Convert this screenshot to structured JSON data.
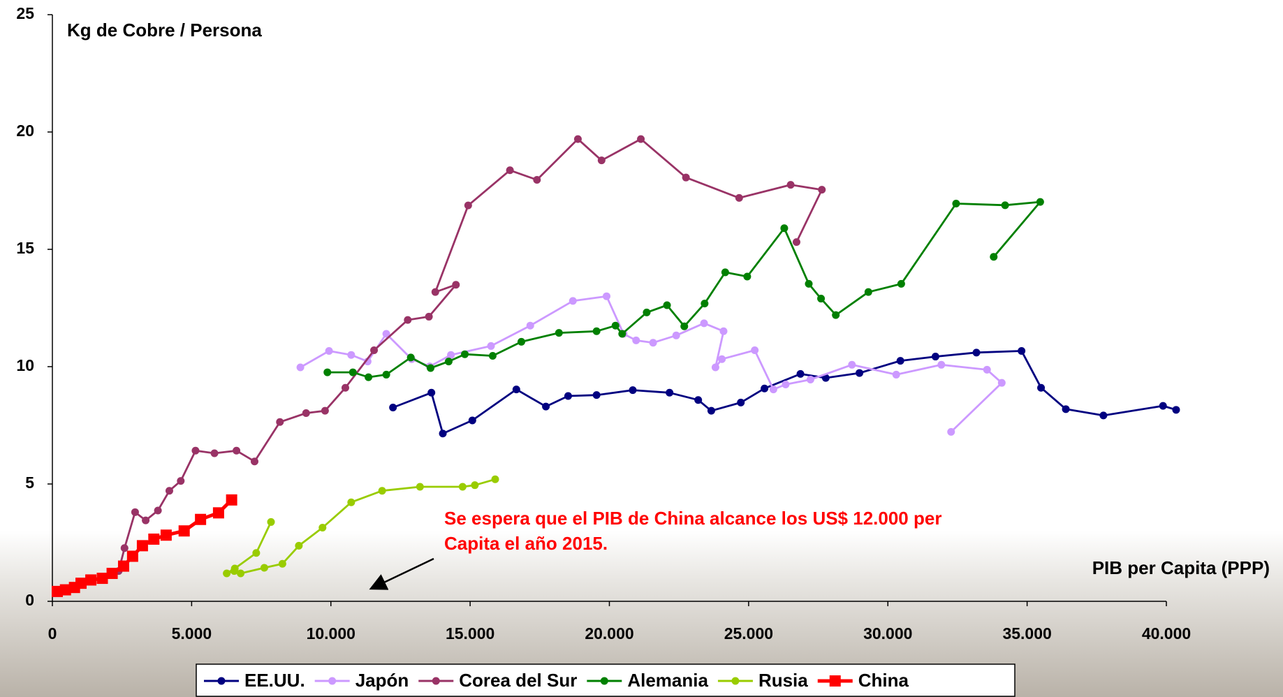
{
  "chart_data": {
    "type": "line",
    "title": "Kg de Cobre / Persona",
    "x_label": "PIB per Capita  (PPP)",
    "annotation": [
      "Se espera que el PIB de China alcance los US$ 12.000 per",
      "Capita el año 2015."
    ],
    "xlim": [
      0,
      40000
    ],
    "ylim": [
      0,
      25
    ],
    "xticks": [
      0,
      {
        "value": 5000,
        "label": "5.000"
      },
      {
        "value": 10000,
        "label": "10.000"
      },
      {
        "value": 15000,
        "label": "15.000"
      },
      {
        "value": 20000,
        "label": "20.000"
      },
      {
        "value": 25000,
        "label": "25.000"
      },
      {
        "value": 30000,
        "label": "30.000"
      },
      {
        "value": 35000,
        "label": "35.000"
      },
      {
        "value": 40000,
        "label": "40.000"
      }
    ],
    "yticks": [
      0,
      5,
      10,
      15,
      20,
      25
    ],
    "legend": "bottom",
    "series": [
      {
        "name": "EE.UU.",
        "color": "#000080",
        "marker": "circle",
        "x": [
          12230,
          13610,
          14020,
          15080,
          16660,
          17720,
          18520,
          19540,
          20840,
          22160,
          23190,
          23660,
          24720,
          25570,
          26860,
          27770,
          28980,
          30450,
          31710,
          33180,
          34800,
          35500,
          36390,
          37740,
          39880,
          40350
        ],
        "values": [
          8.26,
          8.89,
          7.15,
          7.71,
          9.03,
          8.3,
          8.75,
          8.79,
          9.0,
          8.89,
          8.58,
          8.12,
          8.47,
          9.07,
          9.69,
          9.52,
          9.73,
          10.25,
          10.43,
          10.6,
          10.67,
          9.1,
          8.19,
          7.92,
          8.33,
          8.16
        ]
      },
      {
        "name": "Japón",
        "color": "#cc99ff",
        "marker": "circle",
        "x": [
          8905,
          9934,
          10730,
          11320,
          11990,
          12900,
          13550,
          14310,
          15750,
          17160,
          18690,
          19900,
          20510,
          20960,
          21570,
          22400,
          23400,
          24100,
          23810,
          24040,
          25220,
          25890,
          26330,
          27220,
          28710,
          30300,
          31920,
          33560,
          34090,
          32270
        ],
        "values": [
          9.97,
          10.67,
          10.5,
          10.22,
          11.4,
          10.32,
          10.01,
          10.5,
          10.88,
          11.75,
          12.8,
          13.0,
          11.4,
          11.12,
          11.02,
          11.33,
          11.85,
          11.51,
          9.97,
          10.32,
          10.7,
          9.03,
          9.24,
          9.45,
          10.08,
          9.66,
          10.08,
          9.87,
          9.31,
          7.22
        ]
      },
      {
        "name": "Corea del Sur",
        "color": "#993366",
        "marker": "circle",
        "x": [
          2380,
          2590,
          2970,
          3350,
          3790,
          4200,
          4610,
          5140,
          5820,
          6610,
          7260,
          8170,
          9110,
          9790,
          10520,
          11550,
          12760,
          13520,
          14490,
          13750,
          14930,
          16430,
          17400,
          18870,
          19720,
          21130,
          22750,
          24660,
          26510,
          27630,
          26720
        ],
        "values": [
          1.29,
          2.27,
          3.8,
          3.45,
          3.87,
          4.71,
          5.13,
          6.42,
          6.31,
          6.42,
          5.96,
          7.64,
          8.02,
          8.12,
          9.1,
          10.7,
          11.99,
          12.13,
          13.49,
          13.18,
          16.87,
          18.37,
          17.96,
          19.7,
          18.79,
          19.7,
          18.06,
          17.19,
          17.75,
          17.54,
          15.31
        ]
      },
      {
        "name": "Alemania",
        "color": "#008000",
        "marker": "circle",
        "x": [
          9875,
          10790,
          11350,
          11990,
          12870,
          13580,
          14230,
          14810,
          15810,
          16840,
          18190,
          19540,
          20220,
          20460,
          21340,
          22070,
          22690,
          23420,
          24160,
          24950,
          26280,
          27160,
          27600,
          28130,
          29300,
          30480,
          32450,
          34210,
          35470,
          33800
        ],
        "values": [
          9.76,
          9.76,
          9.55,
          9.66,
          10.39,
          9.94,
          10.22,
          10.53,
          10.46,
          11.06,
          11.44,
          11.51,
          11.75,
          11.4,
          12.31,
          12.62,
          11.72,
          12.69,
          14.02,
          13.84,
          15.9,
          13.53,
          12.9,
          12.2,
          13.18,
          13.53,
          16.95,
          16.88,
          17.02,
          14.68
        ]
      },
      {
        "name": "Rusia",
        "color": "#99cc00",
        "marker": "circle",
        "x": [
          7850,
          7320,
          6550,
          6260,
          6530,
          6760,
          7610,
          8260,
          8850,
          9700,
          10730,
          11840,
          13200,
          14730,
          15170,
          15900
        ],
        "values": [
          3.38,
          2.06,
          1.4,
          1.19,
          1.29,
          1.19,
          1.43,
          1.6,
          2.37,
          3.14,
          4.22,
          4.71,
          4.88,
          4.88,
          4.95,
          5.2
        ]
      },
      {
        "name": "China",
        "color": "#ff0000",
        "marker": "square",
        "x": [
          176,
          470,
          794,
          1029,
          1381,
          1793,
          2146,
          2557,
          2880,
          3233,
          3644,
          4085,
          4732,
          5320,
          5966,
          6436
        ],
        "values": [
          0.42,
          0.49,
          0.59,
          0.77,
          0.91,
          0.98,
          1.19,
          1.5,
          1.92,
          2.37,
          2.65,
          2.82,
          3.0,
          3.49,
          3.77,
          4.32
        ]
      }
    ]
  }
}
